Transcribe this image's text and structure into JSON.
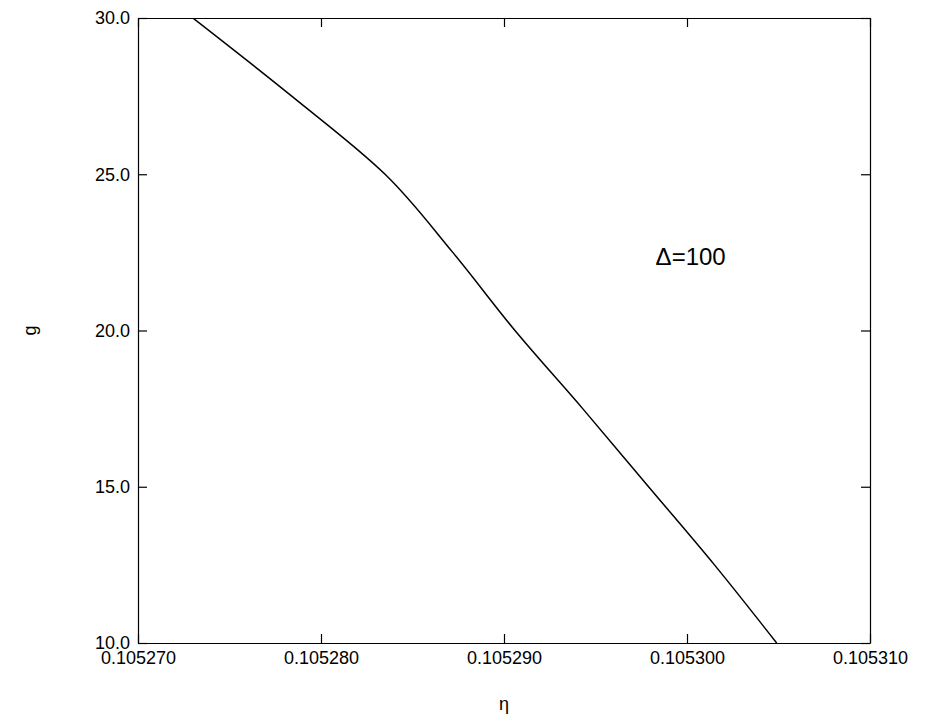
{
  "chart_data": {
    "type": "line",
    "x_label": "η",
    "y_label": "g",
    "x": [
      0.105273,
      0.1052784,
      0.1052835,
      0.1052872,
      0.1052906,
      0.1052943,
      0.1052979,
      0.1053015,
      0.1053049
    ],
    "values": [
      30,
      27.5,
      25,
      22.5,
      20,
      17.5,
      15,
      12.5,
      10
    ],
    "color": "#000000",
    "line_style": "solid",
    "xlim": [
      0.10527,
      0.10531
    ],
    "ylim": [
      10,
      30
    ],
    "xticks": [
      {
        "value": 0.10527,
        "label": "0.105270"
      },
      {
        "value": 0.10528,
        "label": "0.105280"
      },
      {
        "value": 0.10529,
        "label": "0.105290"
      },
      {
        "value": 0.1053,
        "label": "0.105300"
      },
      {
        "value": 0.10531,
        "label": "0.105310"
      }
    ],
    "yticks": [
      {
        "value": 10,
        "label": "10.0"
      },
      {
        "value": 15,
        "label": "15.0"
      },
      {
        "value": 20,
        "label": "20.0"
      },
      {
        "value": 25,
        "label": "25.0"
      },
      {
        "value": 30,
        "label": "30.0"
      }
    ],
    "annotations": [
      {
        "text": "Δ=100",
        "x": 0.1053002,
        "y": 22.3
      }
    ]
  }
}
